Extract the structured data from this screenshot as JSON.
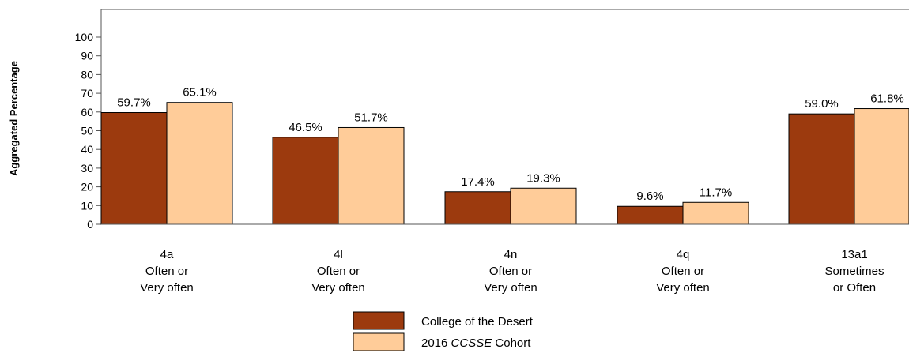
{
  "chart_data": {
    "type": "bar",
    "ylabel": "Aggregated Percentage",
    "ylim": [
      0,
      100
    ],
    "yticks": [
      0,
      10,
      20,
      30,
      40,
      50,
      60,
      70,
      80,
      90,
      100
    ],
    "categories": [
      [
        "4a",
        "Often or",
        "Very often"
      ],
      [
        "4l",
        "Often or",
        "Very often"
      ],
      [
        "4n",
        "Often or",
        "Very often"
      ],
      [
        "4q",
        "Often or",
        "Very often"
      ],
      [
        "13a1",
        "Sometimes",
        "or Often"
      ]
    ],
    "series": [
      {
        "name": "College of the Desert",
        "color": "#9c3a0e",
        "values": [
          59.7,
          46.5,
          17.4,
          9.6,
          59.0
        ],
        "labels": [
          "59.7%",
          "46.5%",
          "17.4%",
          "9.6%",
          "59.0%"
        ]
      },
      {
        "name_parts": [
          "2016 ",
          "CCSSE",
          " Cohort"
        ],
        "color": "#ffcc99",
        "values": [
          65.1,
          51.7,
          19.3,
          11.7,
          61.8
        ],
        "labels": [
          "65.1%",
          "51.7%",
          "19.3%",
          "11.7%",
          "61.8%"
        ]
      }
    ],
    "legend_position": "bottom-center",
    "grid": false
  }
}
